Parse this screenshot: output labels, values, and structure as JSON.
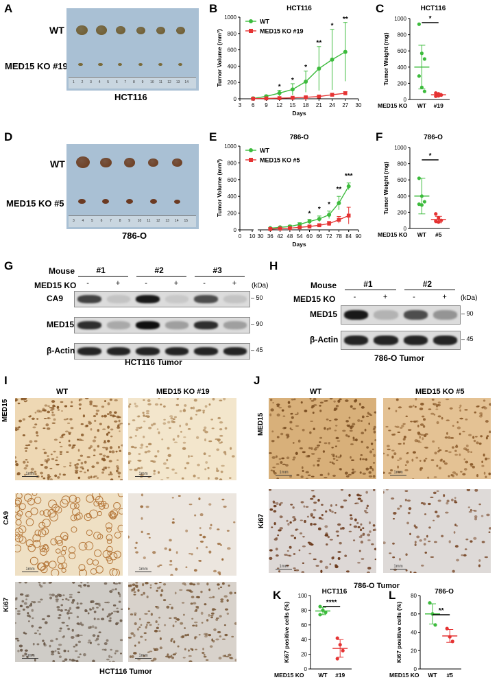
{
  "panel_letters": [
    "A",
    "B",
    "C",
    "D",
    "E",
    "F",
    "G",
    "H",
    "I",
    "J",
    "K",
    "L"
  ],
  "colors": {
    "wt": "#3dbb3d",
    "ko": "#e53333",
    "tumor": "#6b3a1c",
    "tumor_hct": "#6e5a2c"
  },
  "panel_a": {
    "wt": "WT",
    "ko": "MED15 KO #19",
    "caption": "HCT116",
    "ruler": [
      "1",
      "2",
      "3",
      "4",
      "5",
      "6",
      "7",
      "8",
      "9",
      "10",
      "11",
      "12",
      "13",
      "14"
    ]
  },
  "panel_d": {
    "wt": "WT",
    "ko": "MED15 KO #5",
    "caption": "786-O",
    "ruler": [
      "3",
      "4",
      "5",
      "6",
      "7",
      "8",
      "9",
      "10",
      "11",
      "12",
      "13",
      "14",
      "15"
    ]
  },
  "chart_data": [
    {
      "id": "B",
      "type": "line",
      "title": "HCT116",
      "xlabel": "Days",
      "ylabel": "Tumor Volume (mm³)",
      "xlim": [
        3,
        30
      ],
      "ylim": [
        0,
        1000
      ],
      "xticks": [
        "3",
        "6",
        "9",
        "12",
        "15",
        "18",
        "21",
        "24",
        "27",
        "30"
      ],
      "yticks": [
        "0",
        "200",
        "400",
        "600",
        "800",
        "1000"
      ],
      "legend": "top-left",
      "series": [
        {
          "name": "WT",
          "color": "#3dbb3d",
          "marker": "circle",
          "x": [
            6,
            9,
            12,
            15,
            18,
            21,
            24,
            27
          ],
          "y": [
            5,
            30,
            70,
            115,
            210,
            370,
            480,
            575
          ],
          "err": [
            3,
            15,
            35,
            70,
            130,
            270,
            370,
            360
          ]
        },
        {
          "name": "MED15 KO #19",
          "color": "#e53333",
          "marker": "square",
          "x": [
            6,
            9,
            12,
            15,
            18,
            21,
            24,
            27
          ],
          "y": [
            2,
            5,
            8,
            12,
            18,
            28,
            50,
            68
          ],
          "err": [
            1,
            3,
            4,
            5,
            8,
            10,
            15,
            20
          ]
        }
      ],
      "annotations": [
        {
          "x": 12,
          "text": "*",
          "y": 120
        },
        {
          "x": 15,
          "text": "*",
          "y": 200
        },
        {
          "x": 18,
          "text": "*",
          "y": 360
        },
        {
          "x": 21,
          "text": "**",
          "y": 660
        },
        {
          "x": 24,
          "text": "*",
          "y": 870
        },
        {
          "x": 27,
          "text": "**",
          "y": 950
        }
      ]
    },
    {
      "id": "C",
      "type": "scatter",
      "title": "HCT116",
      "ylabel": "Tumor Weight (mg)",
      "ylim": [
        0,
        1000
      ],
      "yticks": [
        "0",
        "200",
        "400",
        "600",
        "800",
        "1000"
      ],
      "row_label": "MED15 KO",
      "categories": [
        "WT",
        "#19"
      ],
      "groups": [
        {
          "name": "WT",
          "color": "#3dbb3d",
          "points": [
            930,
            570,
            500,
            290,
            150,
            100
          ],
          "mean": 400,
          "sd": 270
        },
        {
          "name": "#19",
          "color": "#e53333",
          "points": [
            80,
            70,
            55,
            40,
            45
          ],
          "mean": 58,
          "sd": 18
        }
      ],
      "significance": "*"
    },
    {
      "id": "E",
      "type": "line",
      "title": "786-O",
      "xlabel": "Days",
      "ylabel": "Tumor Volume (mm³)",
      "xlim": [
        0,
        90
      ],
      "ylim": [
        0,
        1000
      ],
      "xticks": [
        "0",
        "10",
        "30",
        "36",
        "42",
        "48",
        "54",
        "60",
        "66",
        "72",
        "78",
        "84",
        "90"
      ],
      "yticks": [
        "0",
        "200",
        "400",
        "600",
        "800",
        "1000"
      ],
      "legend": "top-left",
      "series": [
        {
          "name": "WT",
          "color": "#3dbb3d",
          "marker": "circle",
          "x": [
            36,
            42,
            48,
            54,
            60,
            66,
            72,
            78,
            84
          ],
          "y": [
            20,
            30,
            40,
            65,
            100,
            130,
            180,
            320,
            520
          ],
          "err": [
            8,
            10,
            15,
            20,
            25,
            35,
            45,
            80,
            40
          ]
        },
        {
          "name": "MED15 KO #5",
          "color": "#e53333",
          "marker": "square",
          "x": [
            36,
            42,
            48,
            54,
            60,
            66,
            72,
            78,
            84
          ],
          "y": [
            10,
            15,
            20,
            30,
            40,
            55,
            75,
            120,
            170
          ],
          "err": [
            5,
            6,
            8,
            10,
            12,
            15,
            25,
            40,
            100
          ]
        }
      ],
      "annotations": [
        {
          "x": 60,
          "text": "*",
          "y": 170
        },
        {
          "x": 66,
          "text": "*",
          "y": 220
        },
        {
          "x": 72,
          "text": "*",
          "y": 280
        },
        {
          "x": 78,
          "text": "**",
          "y": 460
        },
        {
          "x": 84,
          "text": "***",
          "y": 620
        }
      ]
    },
    {
      "id": "F",
      "type": "scatter",
      "title": "786-O",
      "ylabel": "Tumor Weight (mg)",
      "ylim": [
        0,
        1000
      ],
      "yticks": [
        "0",
        "200",
        "400",
        "600",
        "800",
        "1000"
      ],
      "row_label": "MED15 KO",
      "categories": [
        "WT",
        "#5"
      ],
      "groups": [
        {
          "name": "WT",
          "color": "#3dbb3d",
          "points": [
            620,
            400,
            330,
            300,
            290
          ],
          "mean": 400,
          "sd": 220
        },
        {
          "name": "#5",
          "color": "#e53333",
          "points": [
            180,
            130,
            100,
            90,
            80
          ],
          "mean": 110,
          "sd": 40
        }
      ],
      "significance": "*"
    },
    {
      "id": "K",
      "type": "scatter",
      "title": "HCT116",
      "ylabel": "Ki67 positive cells (%)",
      "ylim": [
        0,
        100
      ],
      "yticks": [
        "0",
        "20",
        "40",
        "60",
        "80",
        "100"
      ],
      "row_label": "MED15 KO",
      "categories": [
        "WT",
        "#19"
      ],
      "groups": [
        {
          "name": "WT",
          "color": "#3dbb3d",
          "points": [
            85,
            80,
            77,
            74
          ],
          "mean": 79,
          "sd": 5
        },
        {
          "name": "#19",
          "color": "#e53333",
          "points": [
            42,
            33,
            25,
            14
          ],
          "mean": 28,
          "sd": 12
        }
      ],
      "significance": "****"
    },
    {
      "id": "L",
      "type": "scatter",
      "title": "786-O",
      "ylabel": "Ki67 positive cells (%)",
      "ylim": [
        0,
        80
      ],
      "yticks": [
        "0",
        "20",
        "40",
        "60",
        "80"
      ],
      "row_label": "MED15 KO",
      "categories": [
        "WT",
        "#5"
      ],
      "groups": [
        {
          "name": "WT",
          "color": "#3dbb3d",
          "points": [
            72,
            60,
            48
          ],
          "mean": 60,
          "sd": 11
        },
        {
          "name": "#5",
          "color": "#e53333",
          "points": [
            44,
            35,
            30
          ],
          "mean": 36,
          "sd": 7
        }
      ],
      "significance": "**"
    }
  ],
  "panel_g": {
    "mouse_label": "Mouse",
    "ko_label": "MED15 KO",
    "mice": [
      "#1",
      "#2",
      "#3"
    ],
    "signs": [
      "-",
      "+",
      "-",
      "+",
      "-",
      "+"
    ],
    "kda": "(kDa)",
    "rows": [
      {
        "name": "CA9",
        "marker": "50",
        "intensity": [
          0.75,
          0.12,
          0.95,
          0.1,
          0.7,
          0.12
        ]
      },
      {
        "name": "MED15",
        "marker": "90",
        "intensity": [
          0.85,
          0.25,
          1.0,
          0.3,
          0.85,
          0.3
        ]
      },
      {
        "name": "β-Actin",
        "marker": "45",
        "intensity": [
          0.9,
          0.9,
          0.9,
          0.9,
          0.9,
          0.9
        ]
      }
    ],
    "caption": "HCT116 Tumor"
  },
  "panel_h": {
    "mouse_label": "Mouse",
    "ko_label": "MED15 KO",
    "mice": [
      "#1",
      "#2"
    ],
    "signs": [
      "-",
      "+",
      "-",
      "+"
    ],
    "kda": "(kDa)",
    "rows": [
      {
        "name": "MED15",
        "marker": "90",
        "intensity": [
          0.95,
          0.2,
          0.7,
          0.35
        ]
      },
      {
        "name": "β-Actin",
        "marker": "45",
        "intensity": [
          0.9,
          0.9,
          0.9,
          0.9
        ]
      }
    ],
    "caption": "786-O Tumor"
  },
  "panel_i": {
    "col_wt": "WT",
    "col_ko": "MED15 KO #19",
    "rows": [
      "MED15",
      "CA9",
      "Ki67"
    ],
    "scale": "1mm",
    "caption": "HCT116 Tumor"
  },
  "panel_j": {
    "col_wt": "WT",
    "col_ko": "MED15 KO #5",
    "rows": [
      "MED15",
      "Ki67"
    ],
    "scale": "1mm",
    "caption": "786-O Tumor"
  }
}
